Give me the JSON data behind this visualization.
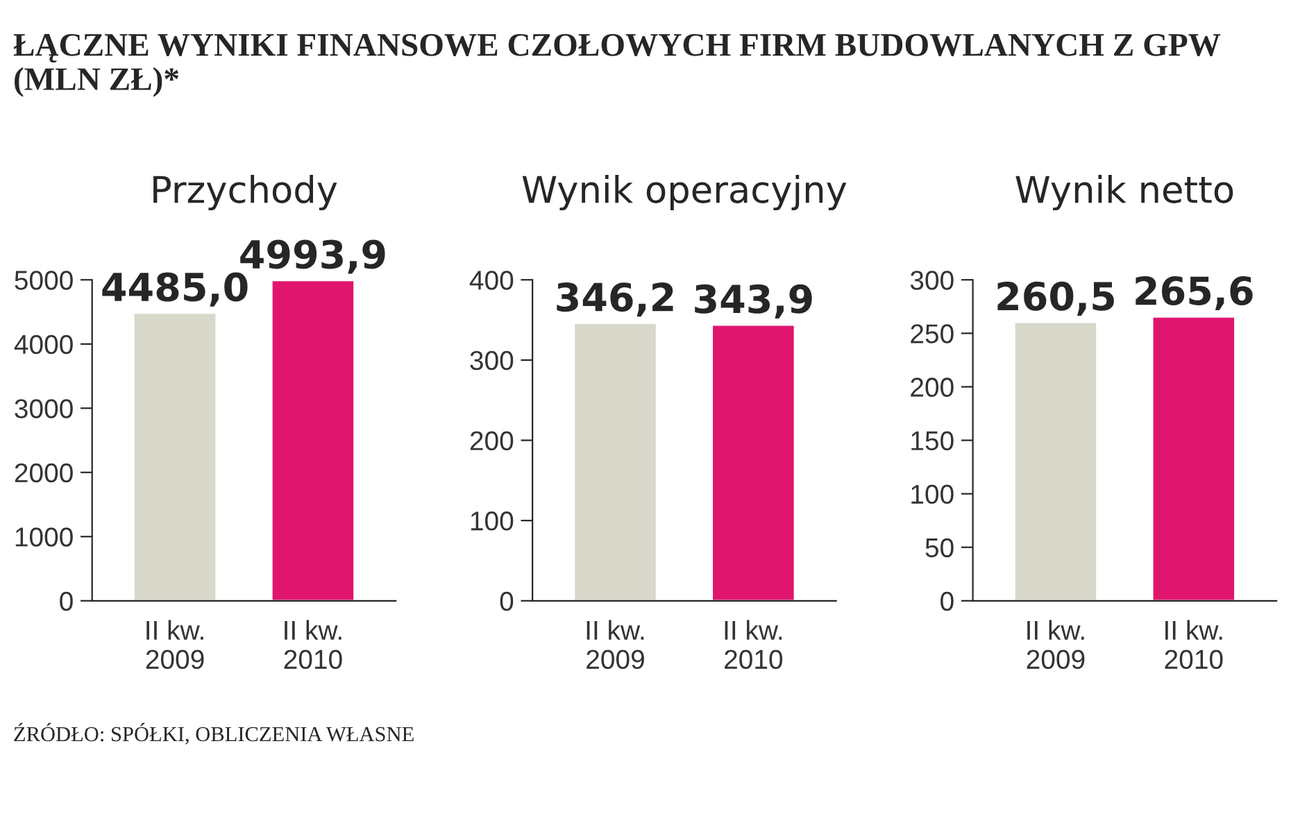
{
  "chart_data": [
    {
      "type": "bar",
      "title": "Przychody",
      "categories": [
        "II kw.\n2009",
        "II kw.\n2010"
      ],
      "values": [
        4485.0,
        4993.9
      ],
      "colors": [
        "#d8d8cb",
        "#e0166e"
      ],
      "value_labels": [
        "4485,0",
        "4993,9"
      ],
      "ylim": [
        0,
        5000
      ],
      "yticks": [
        0,
        1000,
        2000,
        3000,
        4000,
        5000
      ],
      "grid": false,
      "legend": false,
      "annotations": [
        "ŁĄCZNE WYNIKI FINANSOWE CZOŁOWYCH FIRM BUDOWLANYCH Z GPW (MLN ZŁ)*",
        "ŹRÓDŁO: SPÓŁKI, OBLICZENIA WŁASNE"
      ]
    },
    {
      "type": "bar",
      "title": "Wynik operacyjny",
      "categories": [
        "II kw.\n2009",
        "II kw.\n2010"
      ],
      "values": [
        346.2,
        343.9
      ],
      "colors": [
        "#d8d8cb",
        "#e0166e"
      ],
      "value_labels": [
        "346,2",
        "343,9"
      ],
      "ylim": [
        0,
        400
      ],
      "yticks": [
        0,
        100,
        200,
        300,
        400
      ],
      "grid": false,
      "legend": false
    },
    {
      "type": "bar",
      "title": "Wynik netto",
      "categories": [
        "II kw.\n2009",
        "II kw.\n2010"
      ],
      "values": [
        260.5,
        265.6
      ],
      "colors": [
        "#d8d8cb",
        "#e0166e"
      ],
      "value_labels": [
        "260,5",
        "265,6"
      ],
      "ylim": [
        0,
        300
      ],
      "yticks": [
        0,
        50,
        100,
        150,
        200,
        250,
        300
      ],
      "grid": false,
      "legend": false
    }
  ]
}
